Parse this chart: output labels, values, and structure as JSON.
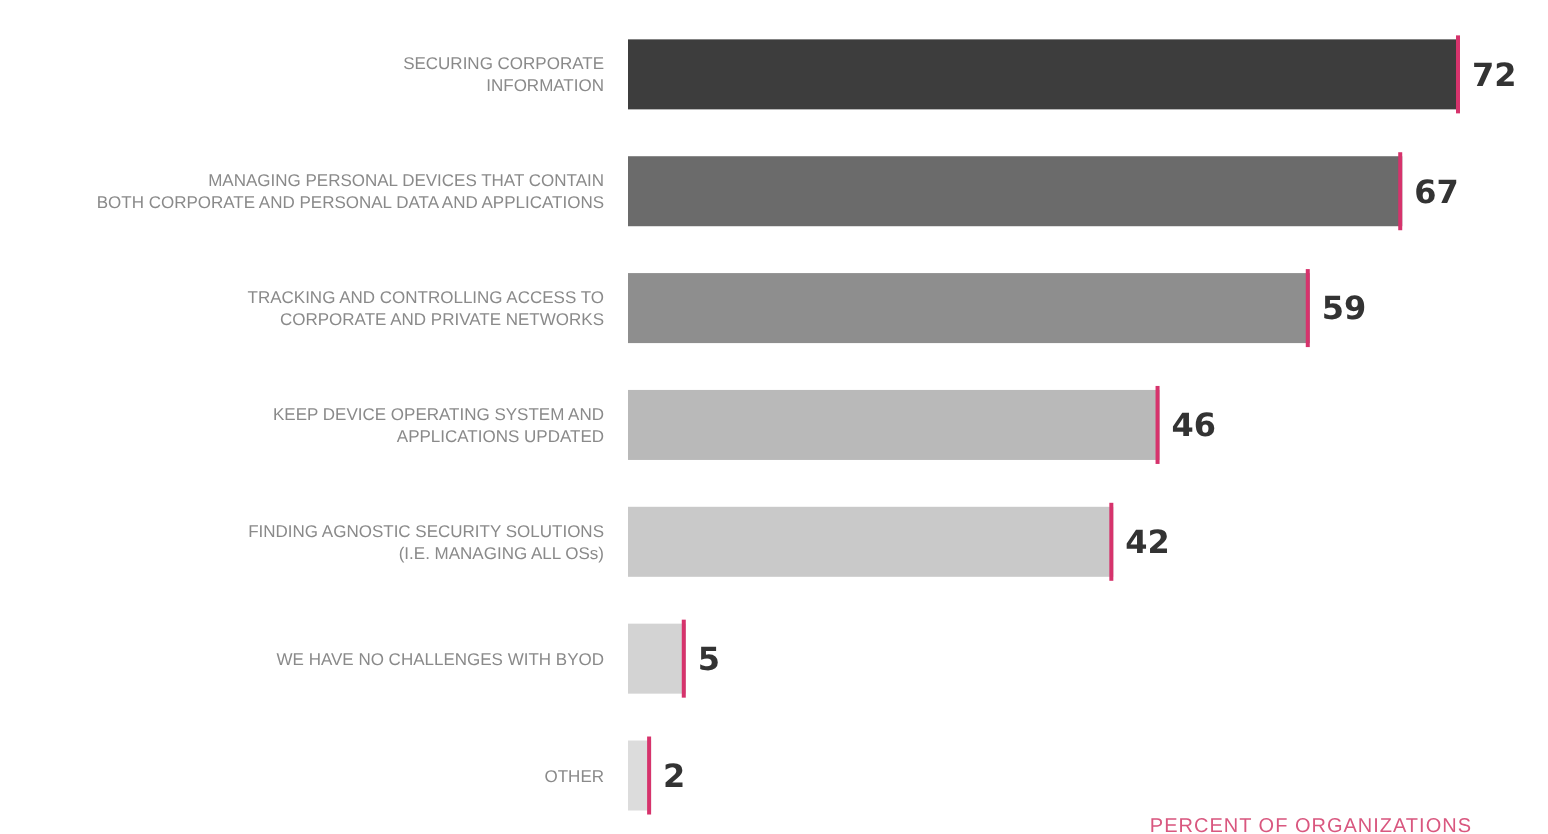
{
  "chart_data": {
    "type": "bar",
    "orientation": "horizontal",
    "categories": [
      "SECURING CORPORATE\nINFORMATION",
      "MANAGING PERSONAL DEVICES THAT CONTAIN\nBOTH CORPORATE AND PERSONAL DATA AND APPLICATIONS",
      "TRACKING AND CONTROLLING ACCESS TO\nCORPORATE AND PRIVATE NETWORKS",
      "KEEP DEVICE OPERATING SYSTEM AND\nAPPLICATIONS UPDATED",
      "FINDING AGNOSTIC SECURITY SOLUTIONS\n(I.E. MANAGING ALL OSs)",
      "WE HAVE NO CHALLENGES WITH BYOD",
      "OTHER"
    ],
    "values": [
      72,
      67,
      59,
      46,
      42,
      5,
      2
    ],
    "colors": [
      "#3d3d3d",
      "#6b6b6b",
      "#8e8e8e",
      "#b9b9b9",
      "#c9c9c9",
      "#d3d3d3",
      "#dcdcdc"
    ],
    "data_labels": true,
    "annotations": [
      "PERCENT OF ORGANIZATIONS"
    ]
  }
}
